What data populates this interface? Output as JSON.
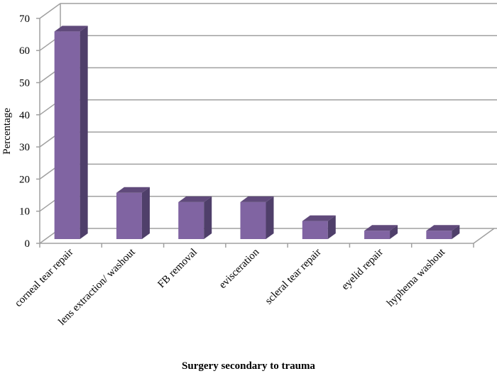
{
  "chart_data": {
    "type": "bar",
    "title": "",
    "xlabel": "Surgery secondary to trauma",
    "ylabel": "Percentage",
    "categories": [
      "corneal tear repair",
      "lens extraction/ washout",
      "FB removal",
      "evisceration",
      "scleral tear repair",
      "eyelid repair",
      "hyphema washout"
    ],
    "values": [
      64.6,
      14.4,
      11.5,
      11.5,
      5.6,
      2.6,
      2.6
    ],
    "ylim": [
      0,
      70
    ],
    "yticks": [
      "0",
      "10",
      "20",
      "30",
      "40",
      "50",
      "60",
      "70"
    ],
    "grid": true,
    "style": "3d-column",
    "colors": {
      "front": "#8064a2",
      "side": "#4f3f6a",
      "top": "#604a7b",
      "grid": "#a0a0a0"
    }
  }
}
